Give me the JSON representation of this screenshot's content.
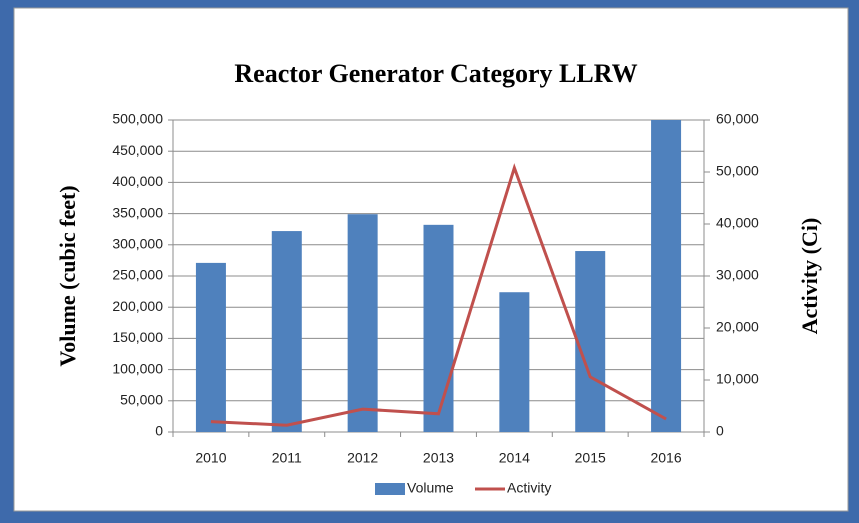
{
  "chart_data": {
    "type": "bar",
    "title": "Reactor Generator Category LLRW",
    "ylabel": "Volume (cubic feet)",
    "y2label": "Activity (Ci)",
    "categories": [
      "2010",
      "2011",
      "2012",
      "2013",
      "2014",
      "2015",
      "2016"
    ],
    "series": [
      {
        "name": "Volume",
        "type": "bar",
        "color": "#4f81bd",
        "values": [
          271000,
          322000,
          349000,
          332000,
          224000,
          290000,
          500000
        ]
      },
      {
        "name": "Activity",
        "type": "line",
        "axis": "y2",
        "color": "#c0504d",
        "values": [
          2000,
          1300,
          4400,
          3500,
          50800,
          10600,
          2500
        ]
      }
    ],
    "ylim": [
      0,
      500000
    ],
    "yticks": [
      0,
      {
        "value": 50000,
        "label": "50,000"
      },
      {
        "value": 100000,
        "label": "100,000"
      },
      {
        "value": 150000,
        "label": "150,000"
      },
      {
        "value": 200000,
        "label": "200,000"
      },
      {
        "value": 250000,
        "label": "250,000"
      },
      {
        "value": 300000,
        "label": "300,000"
      },
      {
        "value": 350000,
        "label": "350,000"
      },
      {
        "value": 400000,
        "label": "400,000"
      },
      {
        "value": 450000,
        "label": "450,000"
      },
      {
        "value": 500000,
        "label": "500,000"
      }
    ],
    "y2lim": [
      0,
      60000
    ],
    "y2ticks": [
      0,
      {
        "value": 10000,
        "label": "10,000"
      },
      {
        "value": 20000,
        "label": "20,000"
      },
      {
        "value": 30000,
        "label": "30,000"
      },
      {
        "value": 40000,
        "label": "40,000"
      },
      {
        "value": 50000,
        "label": "50,000"
      },
      {
        "value": 60000,
        "label": "60,000"
      }
    ],
    "grid": true,
    "legend": "bottom"
  }
}
